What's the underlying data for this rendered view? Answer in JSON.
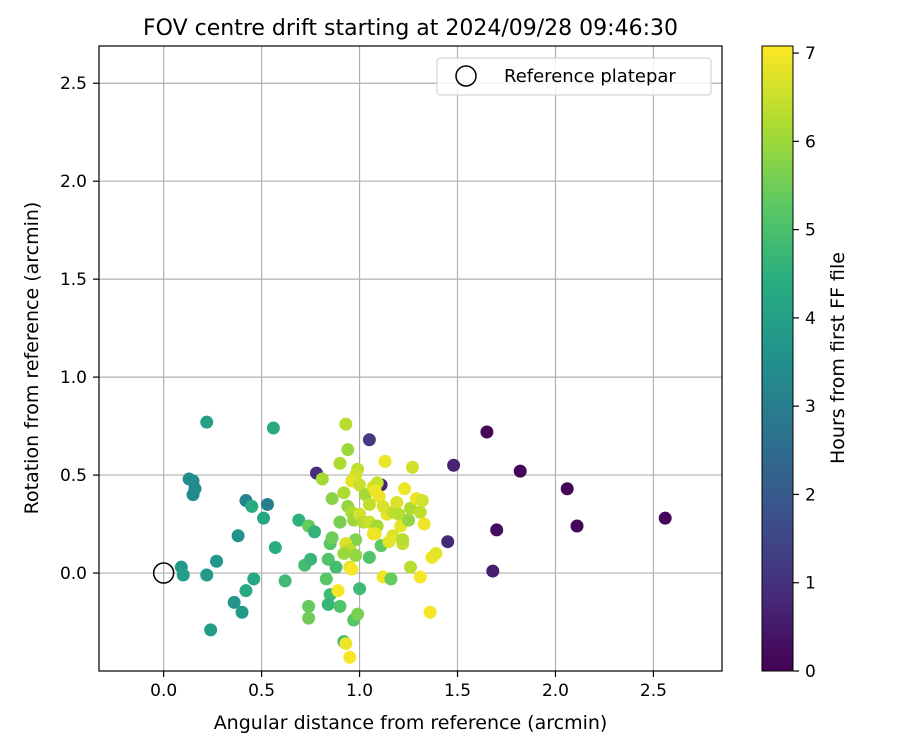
{
  "chart_data": {
    "type": "scatter",
    "title": "FOV centre drift starting at 2024/09/28 09:46:30",
    "xlabel": "Angular distance from reference (arcmin)",
    "ylabel": "Rotation from reference (arcmin)",
    "xlim": [
      -0.33,
      2.85
    ],
    "ylim": [
      -0.5,
      2.69
    ],
    "xticks": [
      0.0,
      0.5,
      1.0,
      1.5,
      2.0,
      2.5
    ],
    "yticks": [
      0.0,
      0.5,
      1.0,
      1.5,
      2.0,
      2.5
    ],
    "grid": true,
    "legend": {
      "position": "top-right",
      "entries": [
        "Reference platepar"
      ]
    },
    "reference": {
      "name": "Reference platepar",
      "x": 0.0,
      "y": 0.0
    },
    "colorbar": {
      "label": "Hours from first FF file",
      "min": 0,
      "max": 7.08,
      "ticks": [
        0,
        1,
        2,
        3,
        4,
        5,
        6,
        7
      ],
      "colormap": "viridis"
    },
    "points": [
      {
        "x": 1.65,
        "y": 0.72,
        "c": 0.1
      },
      {
        "x": 1.82,
        "y": 0.52,
        "c": 0.1
      },
      {
        "x": 2.06,
        "y": 0.43,
        "c": 0.1
      },
      {
        "x": 2.11,
        "y": 0.24,
        "c": 0.1
      },
      {
        "x": 2.56,
        "y": 0.28,
        "c": 0.1
      },
      {
        "x": 1.7,
        "y": 0.22,
        "c": 0.2
      },
      {
        "x": 1.68,
        "y": 0.01,
        "c": 0.6
      },
      {
        "x": 1.48,
        "y": 0.55,
        "c": 0.7
      },
      {
        "x": 1.45,
        "y": 0.16,
        "c": 0.8
      },
      {
        "x": 1.05,
        "y": 0.68,
        "c": 1.2
      },
      {
        "x": 0.78,
        "y": 0.51,
        "c": 0.9
      },
      {
        "x": 1.11,
        "y": 0.45,
        "c": 0.7
      },
      {
        "x": 0.22,
        "y": 0.77,
        "c": 4.0
      },
      {
        "x": 0.56,
        "y": 0.74,
        "c": 4.3
      },
      {
        "x": 0.13,
        "y": 0.48,
        "c": 3.5
      },
      {
        "x": 0.15,
        "y": 0.47,
        "c": 3.4
      },
      {
        "x": 0.16,
        "y": 0.43,
        "c": 3.3
      },
      {
        "x": 0.15,
        "y": 0.4,
        "c": 3.3
      },
      {
        "x": 0.42,
        "y": 0.37,
        "c": 3.2
      },
      {
        "x": 0.53,
        "y": 0.35,
        "c": 3.0
      },
      {
        "x": 0.45,
        "y": 0.34,
        "c": 4.4
      },
      {
        "x": 0.51,
        "y": 0.28,
        "c": 4.2
      },
      {
        "x": 0.38,
        "y": 0.19,
        "c": 3.6
      },
      {
        "x": 0.57,
        "y": 0.13,
        "c": 4.4
      },
      {
        "x": 0.27,
        "y": 0.06,
        "c": 3.7
      },
      {
        "x": 0.09,
        "y": 0.03,
        "c": 3.8
      },
      {
        "x": 0.1,
        "y": -0.01,
        "c": 3.9
      },
      {
        "x": 0.22,
        "y": -0.01,
        "c": 3.8
      },
      {
        "x": 0.46,
        "y": -0.03,
        "c": 4.2
      },
      {
        "x": 0.42,
        "y": -0.09,
        "c": 4.3
      },
      {
        "x": 0.36,
        "y": -0.15,
        "c": 3.7
      },
      {
        "x": 0.4,
        "y": -0.2,
        "c": 3.8
      },
      {
        "x": 0.24,
        "y": -0.29,
        "c": 3.9
      },
      {
        "x": 0.62,
        "y": -0.04,
        "c": 4.8
      },
      {
        "x": 0.69,
        "y": 0.27,
        "c": 4.5
      },
      {
        "x": 0.74,
        "y": 0.24,
        "c": 5.4
      },
      {
        "x": 0.77,
        "y": 0.21,
        "c": 4.6
      },
      {
        "x": 0.72,
        "y": 0.04,
        "c": 4.9
      },
      {
        "x": 0.75,
        "y": 0.07,
        "c": 4.7
      },
      {
        "x": 0.85,
        "y": 0.15,
        "c": 5.2
      },
      {
        "x": 0.86,
        "y": 0.18,
        "c": 5.5
      },
      {
        "x": 0.84,
        "y": 0.07,
        "c": 5.1
      },
      {
        "x": 0.88,
        "y": 0.03,
        "c": 4.9
      },
      {
        "x": 0.83,
        "y": -0.03,
        "c": 5.2
      },
      {
        "x": 0.85,
        "y": -0.11,
        "c": 4.8
      },
      {
        "x": 0.84,
        "y": -0.16,
        "c": 4.7
      },
      {
        "x": 0.74,
        "y": -0.17,
        "c": 5.4
      },
      {
        "x": 0.74,
        "y": -0.23,
        "c": 5.5
      },
      {
        "x": 0.9,
        "y": -0.17,
        "c": 5.1
      },
      {
        "x": 0.92,
        "y": -0.35,
        "c": 4.8
      },
      {
        "x": 0.97,
        "y": -0.24,
        "c": 5.2
      },
      {
        "x": 0.99,
        "y": -0.21,
        "c": 5.6
      },
      {
        "x": 1.0,
        "y": -0.08,
        "c": 4.8
      },
      {
        "x": 1.05,
        "y": 0.08,
        "c": 5.1
      },
      {
        "x": 0.81,
        "y": 0.48,
        "c": 6.1
      },
      {
        "x": 0.86,
        "y": 0.38,
        "c": 5.8
      },
      {
        "x": 0.9,
        "y": 0.56,
        "c": 6.2
      },
      {
        "x": 0.93,
        "y": 0.76,
        "c": 6.3
      },
      {
        "x": 0.94,
        "y": 0.63,
        "c": 6.0
      },
      {
        "x": 0.99,
        "y": 0.53,
        "c": 6.4
      },
      {
        "x": 0.98,
        "y": 0.5,
        "c": 6.6
      },
      {
        "x": 0.92,
        "y": 0.41,
        "c": 6.2
      },
      {
        "x": 0.96,
        "y": 0.47,
        "c": 6.8
      },
      {
        "x": 1.0,
        "y": 0.45,
        "c": 6.5
      },
      {
        "x": 1.03,
        "y": 0.4,
        "c": 6.1
      },
      {
        "x": 1.07,
        "y": 0.44,
        "c": 6.7
      },
      {
        "x": 1.09,
        "y": 0.46,
        "c": 6.5
      },
      {
        "x": 1.1,
        "y": 0.39,
        "c": 6.9
      },
      {
        "x": 1.05,
        "y": 0.35,
        "c": 6.4
      },
      {
        "x": 0.94,
        "y": 0.34,
        "c": 5.9
      },
      {
        "x": 0.96,
        "y": 0.31,
        "c": 6.2
      },
      {
        "x": 0.9,
        "y": 0.26,
        "c": 5.6
      },
      {
        "x": 0.97,
        "y": 0.27,
        "c": 6.0
      },
      {
        "x": 1.0,
        "y": 0.3,
        "c": 6.6
      },
      {
        "x": 1.02,
        "y": 0.26,
        "c": 6.3
      },
      {
        "x": 1.05,
        "y": 0.26,
        "c": 6.5
      },
      {
        "x": 1.09,
        "y": 0.24,
        "c": 6.1
      },
      {
        "x": 1.08,
        "y": 0.2,
        "c": 6.9
      },
      {
        "x": 0.98,
        "y": 0.17,
        "c": 5.7
      },
      {
        "x": 0.93,
        "y": 0.15,
        "c": 6.7
      },
      {
        "x": 0.95,
        "y": 0.12,
        "c": 6.4
      },
      {
        "x": 0.92,
        "y": 0.1,
        "c": 6.0
      },
      {
        "x": 0.98,
        "y": 0.09,
        "c": 5.9
      },
      {
        "x": 0.95,
        "y": 0.03,
        "c": 6.8
      },
      {
        "x": 1.11,
        "y": 0.14,
        "c": 5.3
      },
      {
        "x": 1.13,
        "y": 0.57,
        "c": 6.9
      },
      {
        "x": 1.14,
        "y": 0.3,
        "c": 6.8
      },
      {
        "x": 1.12,
        "y": 0.34,
        "c": 6.7
      },
      {
        "x": 1.17,
        "y": 0.31,
        "c": 6.4
      },
      {
        "x": 1.19,
        "y": 0.36,
        "c": 6.7
      },
      {
        "x": 1.2,
        "y": 0.3,
        "c": 6.3
      },
      {
        "x": 1.21,
        "y": 0.24,
        "c": 6.8
      },
      {
        "x": 1.23,
        "y": 0.43,
        "c": 6.9
      },
      {
        "x": 1.25,
        "y": 0.27,
        "c": 5.9
      },
      {
        "x": 1.26,
        "y": 0.33,
        "c": 6.2
      },
      {
        "x": 1.27,
        "y": 0.54,
        "c": 6.6
      },
      {
        "x": 1.29,
        "y": 0.38,
        "c": 6.9
      },
      {
        "x": 1.31,
        "y": 0.31,
        "c": 6.4
      },
      {
        "x": 1.32,
        "y": 0.37,
        "c": 6.6
      },
      {
        "x": 1.33,
        "y": 0.25,
        "c": 6.9
      },
      {
        "x": 1.17,
        "y": 0.19,
        "c": 6.7
      },
      {
        "x": 1.15,
        "y": 0.16,
        "c": 6.8
      },
      {
        "x": 1.22,
        "y": 0.15,
        "c": 6.5
      },
      {
        "x": 1.22,
        "y": 0.17,
        "c": 6.3
      },
      {
        "x": 1.12,
        "y": -0.02,
        "c": 6.9
      },
      {
        "x": 1.16,
        "y": -0.03,
        "c": 5.4
      },
      {
        "x": 1.26,
        "y": 0.03,
        "c": 6.3
      },
      {
        "x": 1.31,
        "y": -0.02,
        "c": 7.0
      },
      {
        "x": 1.37,
        "y": 0.08,
        "c": 6.9
      },
      {
        "x": 1.39,
        "y": 0.1,
        "c": 6.8
      },
      {
        "x": 1.36,
        "y": -0.2,
        "c": 7.0
      },
      {
        "x": 0.89,
        "y": -0.09,
        "c": 7.0
      },
      {
        "x": 0.93,
        "y": -0.36,
        "c": 6.9
      },
      {
        "x": 0.95,
        "y": -0.43,
        "c": 7.0
      },
      {
        "x": 0.96,
        "y": 0.02,
        "c": 7.0
      },
      {
        "x": 1.07,
        "y": 0.2,
        "c": 6.9
      },
      {
        "x": 1.08,
        "y": 0.42,
        "c": 6.9
      }
    ]
  }
}
